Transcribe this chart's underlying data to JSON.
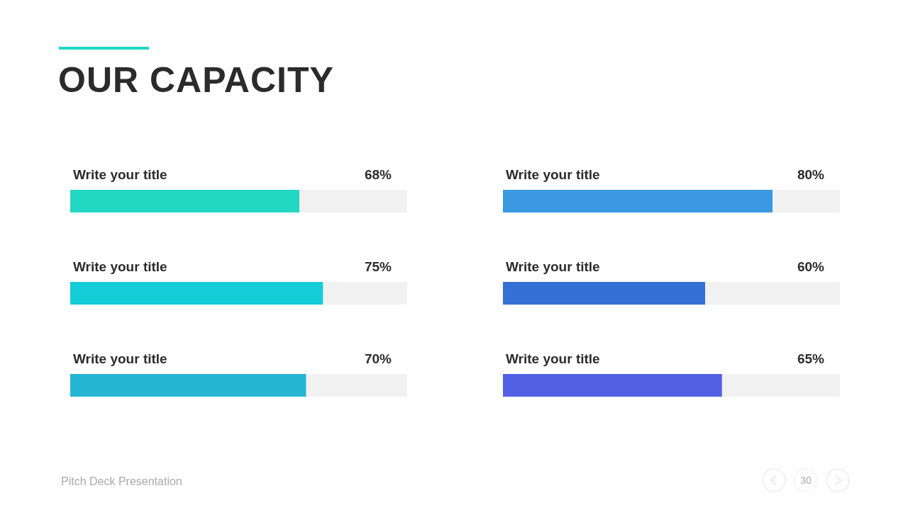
{
  "chart_data": [
    {
      "type": "bar",
      "orientation": "horizontal",
      "title": "OUR CAPACITY",
      "categories": [
        "Write your title",
        "Write your title",
        "Write your title"
      ],
      "values": [
        68,
        75,
        70
      ],
      "value_labels": [
        "68%",
        "75%",
        "70%"
      ],
      "colors": [
        "#22d8c2",
        "#14cbd8",
        "#24b5d3"
      ],
      "xlim": [
        0,
        100
      ],
      "tick_labels": "y",
      "annotations": [
        "Pitch Deck Presentation",
        "30"
      ]
    },
    {
      "type": "bar",
      "orientation": "horizontal",
      "categories": [
        "Write your title",
        "Write your title",
        "Write your title"
      ],
      "values": [
        80,
        60,
        65
      ],
      "value_labels": [
        "80%",
        "60%",
        "65%"
      ],
      "colors": [
        "#3a99e0",
        "#3470d6",
        "#5260e6"
      ],
      "xlim": [
        0,
        100
      ],
      "tick_labels": "y"
    }
  ]
}
